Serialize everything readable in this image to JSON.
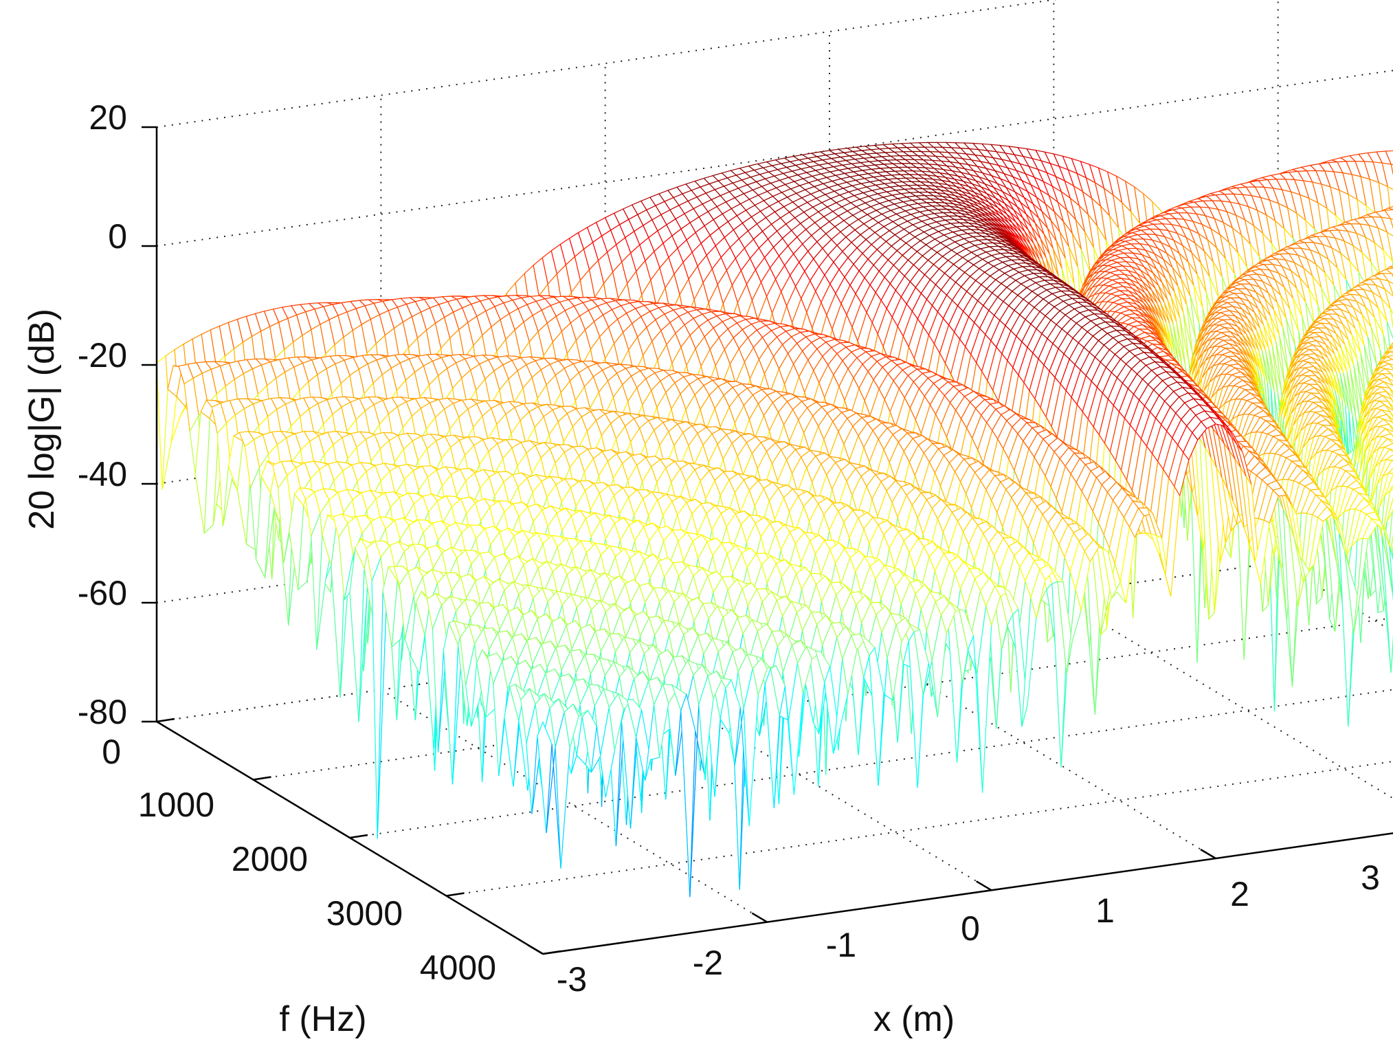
{
  "chart_data": {
    "type": "surface",
    "title": "",
    "xlabel": "x (m)",
    "ylabel": "f (Hz)",
    "zlabel": "20 log|G| (dB)",
    "x_range": [
      -3,
      3
    ],
    "y_range": [
      0,
      4000
    ],
    "z_range": [
      -80,
      20
    ],
    "x_ticks": [
      "-3",
      "-2",
      "-1",
      "0",
      "1",
      "2",
      "3"
    ],
    "y_ticks": [
      "0",
      "1000",
      "2000",
      "3000",
      "4000"
    ],
    "z_ticks": [
      "-80",
      "-60",
      "-40",
      "-20",
      "0",
      "20"
    ],
    "grid": true,
    "colormap": "jet",
    "surface_model": "main-lobe magnitude of an aperture response: peak ~0 dB at x = 0, f = 0; lobe width shrinking with frequency; side lobes ~-30 to -40 dB with nulls down to ~-75 dB",
    "peak": {
      "x": 0,
      "f": 0,
      "db": 0
    },
    "sidelobe_level_db": -35,
    "null_floor_db": -75
  },
  "colors": {
    "low": "#0000ff",
    "mid": "#ffff00",
    "high": "#800000"
  }
}
